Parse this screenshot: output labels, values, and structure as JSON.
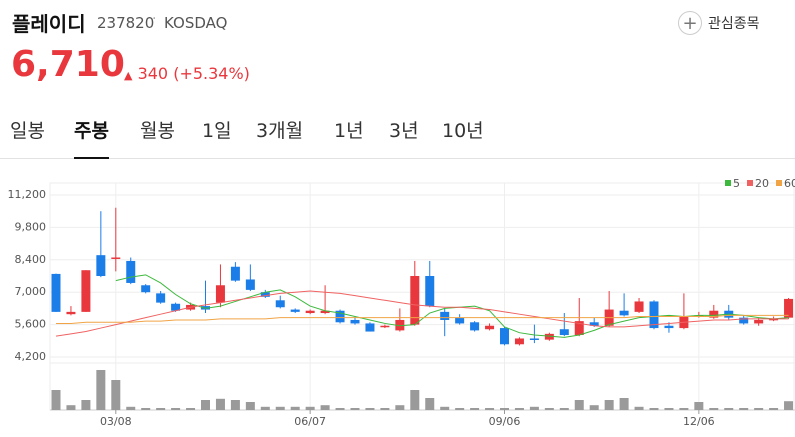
{
  "header": {
    "name": "플레이디",
    "code": "237820",
    "market": "KOSDAQ",
    "watch": "관심종목",
    "price": "6,710",
    "change": "340",
    "change_pct": "(+5.34%)"
  },
  "tabs": [
    "일봉",
    "주봉",
    "월봉",
    "1일",
    "3개월",
    "1년",
    "3년",
    "10년"
  ],
  "active_tab": 1,
  "chart_data": {
    "type": "candlestick",
    "categories": [
      null,
      null,
      null,
      null,
      "03/08",
      null,
      null,
      null,
      null,
      null,
      null,
      null,
      null,
      null,
      null,
      null,
      null,
      "06/07",
      null,
      null,
      null,
      null,
      null,
      null,
      null,
      null,
      null,
      null,
      null,
      null,
      "09/06",
      null,
      null,
      null,
      null,
      null,
      null,
      null,
      null,
      null,
      null,
      null,
      null,
      "12/06",
      null,
      null,
      null,
      null,
      null,
      null
    ],
    "open": [
      7790,
      6050,
      6150,
      8600,
      8450,
      8350,
      7300,
      6950,
      6500,
      6250,
      6400,
      6550,
      8100,
      7550,
      7000,
      6650,
      6250,
      6100,
      6100,
      6200,
      5800,
      5650,
      5500,
      5350,
      5600,
      7700,
      6150,
      5900,
      5700,
      5400,
      5450,
      4750,
      5000,
      4950,
      5400,
      5150,
      5700,
      5550,
      6200,
      6150,
      6600,
      5550,
      5450,
      5950,
      5900,
      6200,
      5900,
      5650,
      5800,
      5900
    ],
    "high": [
      7800,
      6400,
      7950,
      10500,
      10650,
      8500,
      7350,
      7050,
      6550,
      6550,
      7500,
      8200,
      8300,
      8200,
      7100,
      6850,
      6300,
      6250,
      7300,
      6250,
      5950,
      5700,
      5600,
      6300,
      8350,
      8350,
      6300,
      6050,
      5750,
      5650,
      5500,
      5050,
      5600,
      5250,
      6100,
      6750,
      5900,
      7050,
      6950,
      6750,
      6650,
      5700,
      6950,
      6150,
      6450,
      6450,
      6000,
      5900,
      5950,
      6750
    ],
    "low": [
      6150,
      6000,
      6150,
      7650,
      7900,
      7350,
      6950,
      6500,
      6150,
      6200,
      6100,
      6350,
      7450,
      7050,
      6750,
      6300,
      6100,
      6050,
      6050,
      5650,
      5600,
      5300,
      5450,
      5300,
      5550,
      6350,
      5100,
      5600,
      5300,
      5350,
      4700,
      4700,
      4800,
      4900,
      5100,
      5100,
      5500,
      5500,
      5950,
      6100,
      5400,
      5250,
      5400,
      5900,
      5850,
      5800,
      5600,
      5550,
      5750,
      5850
    ],
    "close": [
      6150,
      6150,
      7950,
      7700,
      8500,
      7400,
      7000,
      6550,
      6200,
      6450,
      6250,
      7300,
      7500,
      7100,
      6800,
      6350,
      6150,
      6200,
      6200,
      5700,
      5650,
      5300,
      5550,
      5800,
      7700,
      6400,
      5800,
      5650,
      5350,
      5550,
      4750,
      5000,
      4950,
      5200,
      5150,
      5750,
      5550,
      6250,
      6000,
      6600,
      5450,
      5450,
      5950,
      6000,
      6200,
      5900,
      5650,
      5800,
      5850,
      6710
    ],
    "up_color": "#e8383d",
    "down_color": "#1b7de8",
    "series": [
      {
        "name": "5",
        "color": "#3cb93c",
        "values": [
          null,
          null,
          null,
          null,
          7500,
          7650,
          7750,
          7400,
          6900,
          6500,
          6300,
          6400,
          6600,
          6800,
          7000,
          7100,
          6800,
          6400,
          6200,
          6100,
          5950,
          5800,
          5650,
          5550,
          5600,
          6100,
          6300,
          6350,
          6400,
          6200,
          5500,
          5250,
          5150,
          5100,
          5050,
          5150,
          5350,
          5600,
          5750,
          5900,
          5950,
          6000,
          5950,
          6000,
          6000,
          6050,
          6000,
          5900,
          5850,
          5900
        ]
      },
      {
        "name": "20",
        "color": "#f06262",
        "values": [
          5100,
          5200,
          5300,
          5450,
          5600,
          5750,
          5900,
          6050,
          6200,
          6350,
          6450,
          6550,
          6650,
          6750,
          6850,
          6950,
          7000,
          7050,
          7000,
          6950,
          6850,
          6750,
          6650,
          6550,
          6450,
          6400,
          6350,
          6350,
          6300,
          6250,
          6150,
          6050,
          5950,
          5850,
          5750,
          5650,
          5550,
          5500,
          5500,
          5550,
          5600,
          5650,
          5700,
          5750,
          5800,
          5800,
          5850,
          5850,
          5850,
          5850
        ]
      },
      {
        "name": "60",
        "color": "#f0a445",
        "values": [
          5650,
          5650,
          5700,
          5700,
          5700,
          5700,
          5750,
          5750,
          5800,
          5800,
          5800,
          5850,
          5850,
          5850,
          5850,
          5900,
          5900,
          5900,
          5900,
          5900,
          5900,
          5900,
          5900,
          5900,
          5900,
          5900,
          5900,
          5900,
          5900,
          5900,
          5900,
          5900,
          5900,
          5900,
          5900,
          5900,
          5900,
          5900,
          5900,
          5950,
          5950,
          5950,
          5950,
          5950,
          5950,
          6000,
          6000,
          6000,
          6000,
          6000
        ]
      }
    ],
    "volume": [
      50,
      12,
      25,
      100,
      75,
      8,
      5,
      5,
      5,
      5,
      25,
      28,
      25,
      20,
      8,
      8,
      8,
      8,
      12,
      5,
      5,
      5,
      5,
      12,
      50,
      30,
      8,
      5,
      5,
      5,
      5,
      5,
      8,
      5,
      5,
      25,
      12,
      25,
      30,
      8,
      5,
      5,
      5,
      20,
      5,
      5,
      5,
      5,
      5,
      22
    ],
    "volume_color": "#9a9a9a",
    "y2lim": [
      0,
      100
    ],
    "ylim": [
      4200,
      11200
    ],
    "yticks": [
      {
        "value": 4200,
        "label": "4,200"
      },
      {
        "value": 5600,
        "label": "5,600"
      },
      {
        "value": 7000,
        "label": "7,000"
      },
      {
        "value": 8400,
        "label": "8,400"
      },
      {
        "value": 9800,
        "label": "9,800"
      },
      {
        "value": 11200,
        "label": "11,200"
      }
    ],
    "grid": true
  }
}
